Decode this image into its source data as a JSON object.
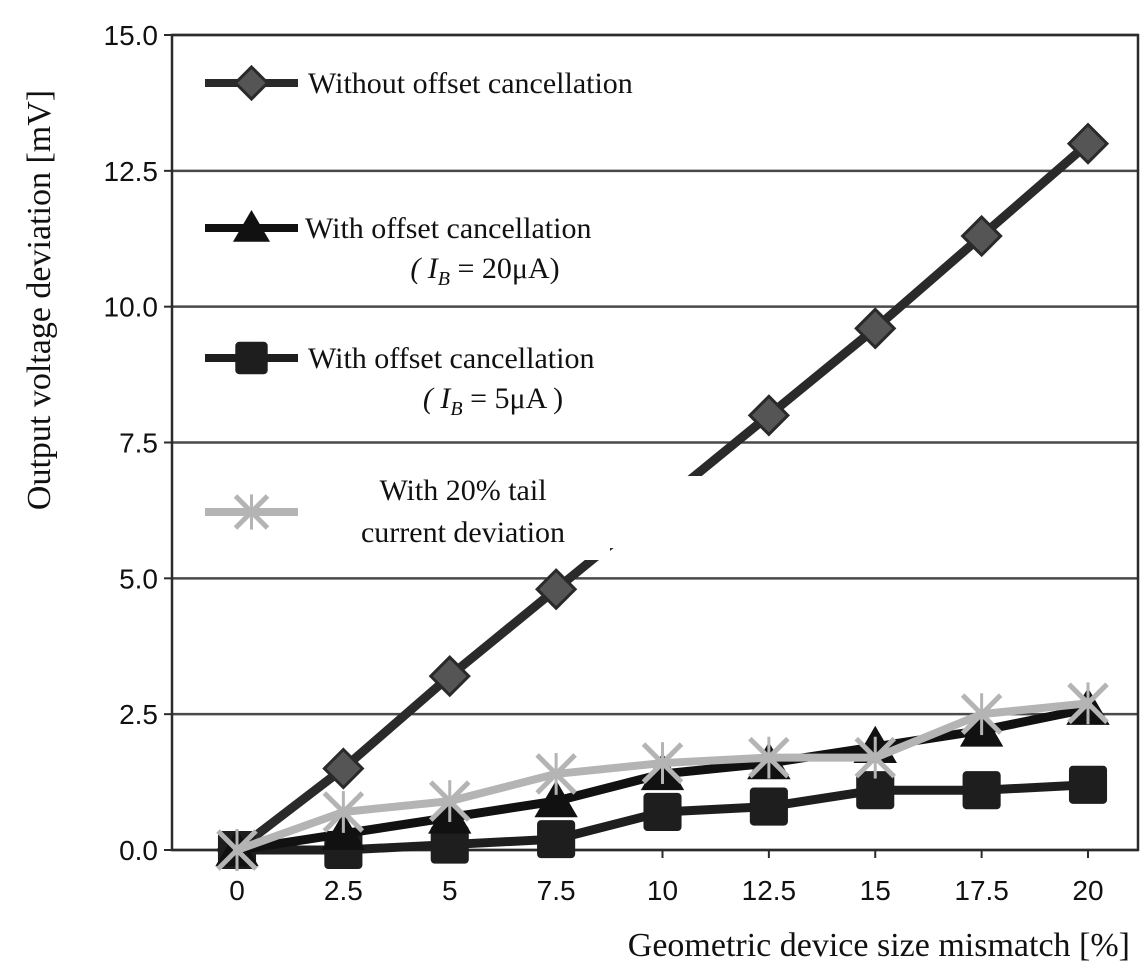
{
  "chart_data": {
    "type": "line",
    "title": "",
    "xlabel": "Geometric device size mismatch  [%]",
    "ylabel": "Output voltage deviation [mV]",
    "x": [
      0,
      2.5,
      5,
      7.5,
      10,
      12.5,
      15,
      17.5,
      20
    ],
    "x_tick_labels": [
      "0",
      "2.5",
      "5",
      "7.5",
      "10",
      "12.5",
      "15",
      "17.5",
      "20"
    ],
    "y_tick_labels": [
      "0.0",
      "2.5",
      "5.0",
      "7.5",
      "10.0",
      "12.5",
      "15.0"
    ],
    "ylim": [
      0,
      15
    ],
    "grid": "horizontal",
    "legend_position": "top-left",
    "series": [
      {
        "name": "Without offset cancellation",
        "legend_lines": [
          "Without offset cancellation"
        ],
        "marker": "diamond",
        "color": "#2a2a2a",
        "values": [
          0.0,
          1.5,
          3.2,
          4.8,
          6.4,
          8.0,
          9.6,
          11.3,
          13.0
        ]
      },
      {
        "name": "With offset cancellation (IB = 20μA)",
        "legend_lines": [
          "With offset cancellation",
          "( I",
          "B",
          " = 20μA)"
        ],
        "marker": "triangle",
        "color": "#111111",
        "values": [
          0.0,
          0.3,
          0.6,
          0.9,
          1.4,
          1.6,
          1.9,
          2.2,
          2.6
        ]
      },
      {
        "name": "With offset cancellation (IB = 5μA)",
        "legend_lines": [
          "With offset cancellation",
          "( I",
          "B",
          " = 5μA )"
        ],
        "marker": "square",
        "color": "#1e1e1e",
        "values": [
          0.0,
          0.0,
          0.1,
          0.2,
          0.7,
          0.8,
          1.1,
          1.1,
          1.2
        ]
      },
      {
        "name": "With 20% tail current deviation",
        "legend_lines": [
          "With 20% tail",
          "current deviation"
        ],
        "marker": "x",
        "color": "#b4b4b4",
        "values": [
          0.0,
          0.7,
          0.9,
          1.4,
          1.6,
          1.7,
          1.7,
          2.5,
          2.7
        ]
      }
    ]
  }
}
